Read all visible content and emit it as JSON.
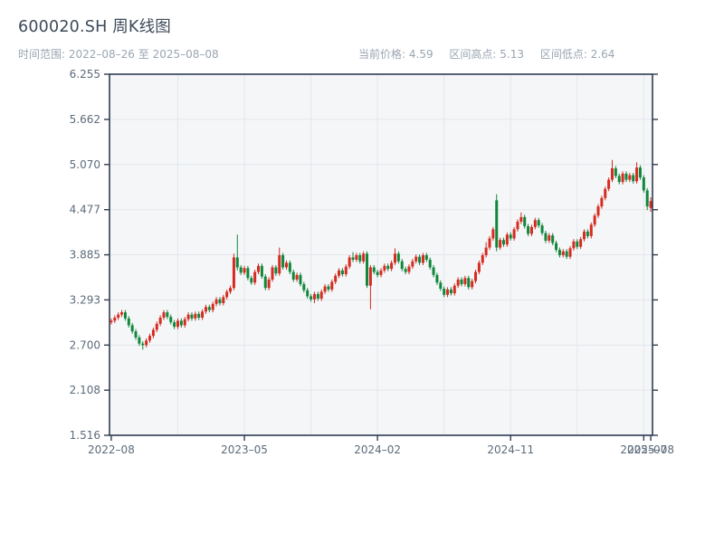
{
  "header": {
    "title": "600020.SH 周K线图",
    "subtitle": "时间范围: 2022–08–26 至 2025–08–08",
    "stats": [
      {
        "label": "当前价格:",
        "value": "4.59"
      },
      {
        "label": "区间高点:",
        "value": "5.13"
      },
      {
        "label": "区间低点:",
        "value": "2.64"
      }
    ]
  },
  "chart_data": {
    "type": "candlestick",
    "title": "600020.SH 周K线图",
    "frequency": "weekly",
    "date_start": "2022-08-26",
    "date_end": "2025-08-08",
    "current_price": 4.59,
    "range_high": 5.13,
    "range_low": 2.64,
    "ylim": [
      1.516,
      6.255
    ],
    "grid": true,
    "up_color": "#d62b20",
    "down_color": "#11873c",
    "spine_color": "#2f3d52",
    "tick_color": "#5c6b7a",
    "plot_bg": "#f4f6f8",
    "grid_color": "#e4e7ea",
    "y_ticks": [
      "6.255",
      "5.662",
      "5.070",
      "4.477",
      "3.885",
      "3.293",
      "2.700",
      "2.108",
      "1.516"
    ],
    "x_ticks": [
      {
        "week": 0,
        "label": "2022–08"
      },
      {
        "week": 38,
        "label": "2023–05"
      },
      {
        "week": 76,
        "label": "2024–02"
      },
      {
        "week": 114,
        "label": "2024–11"
      },
      {
        "week": 152,
        "label": "2025–07"
      },
      {
        "week": 154,
        "label": "2025–08"
      }
    ],
    "v_grid_weeks": [
      19,
      38,
      57,
      76,
      95,
      114,
      133,
      152
    ],
    "candles_ohlc": [
      [
        3.0,
        3.05,
        2.97,
        3.02
      ],
      [
        3.02,
        3.09,
        2.99,
        3.06
      ],
      [
        3.06,
        3.13,
        3.03,
        3.1
      ],
      [
        3.1,
        3.16,
        3.07,
        3.13
      ],
      [
        3.13,
        3.16,
        3.02,
        3.05
      ],
      [
        3.05,
        3.08,
        2.93,
        2.96
      ],
      [
        2.96,
        2.99,
        2.85,
        2.88
      ],
      [
        2.88,
        2.91,
        2.77,
        2.8
      ],
      [
        2.8,
        2.83,
        2.69,
        2.72
      ],
      [
        2.72,
        2.75,
        2.64,
        2.7
      ],
      [
        2.7,
        2.79,
        2.67,
        2.76
      ],
      [
        2.76,
        2.85,
        2.73,
        2.82
      ],
      [
        2.82,
        2.93,
        2.79,
        2.9
      ],
      [
        2.9,
        3.01,
        2.87,
        2.98
      ],
      [
        2.98,
        3.09,
        2.95,
        3.06
      ],
      [
        3.06,
        3.16,
        3.03,
        3.13
      ],
      [
        3.13,
        3.16,
        3.04,
        3.07
      ],
      [
        3.07,
        3.1,
        2.97,
        3.0
      ],
      [
        3.0,
        3.03,
        2.91,
        2.94
      ],
      [
        2.94,
        3.05,
        2.91,
        3.02
      ],
      [
        3.02,
        3.05,
        2.93,
        2.96
      ],
      [
        2.96,
        3.07,
        2.93,
        3.04
      ],
      [
        3.04,
        3.13,
        3.01,
        3.1
      ],
      [
        3.1,
        3.13,
        3.02,
        3.05
      ],
      [
        3.05,
        3.14,
        3.02,
        3.11
      ],
      [
        3.11,
        3.14,
        3.03,
        3.06
      ],
      [
        3.06,
        3.17,
        3.03,
        3.14
      ],
      [
        3.14,
        3.23,
        3.11,
        3.2
      ],
      [
        3.2,
        3.23,
        3.13,
        3.16
      ],
      [
        3.16,
        3.27,
        3.13,
        3.24
      ],
      [
        3.24,
        3.33,
        3.21,
        3.3
      ],
      [
        3.3,
        3.33,
        3.22,
        3.25
      ],
      [
        3.25,
        3.36,
        3.22,
        3.33
      ],
      [
        3.33,
        3.43,
        3.3,
        3.4
      ],
      [
        3.4,
        3.48,
        3.37,
        3.45
      ],
      [
        3.45,
        3.9,
        3.42,
        3.85
      ],
      [
        3.85,
        4.15,
        3.68,
        3.72
      ],
      [
        3.72,
        3.75,
        3.62,
        3.65
      ],
      [
        3.65,
        3.74,
        3.62,
        3.71
      ],
      [
        3.71,
        3.74,
        3.55,
        3.58
      ],
      [
        3.58,
        3.61,
        3.49,
        3.52
      ],
      [
        3.52,
        3.69,
        3.49,
        3.66
      ],
      [
        3.66,
        3.77,
        3.63,
        3.74
      ],
      [
        3.74,
        3.77,
        3.57,
        3.6
      ],
      [
        3.6,
        3.63,
        3.42,
        3.45
      ],
      [
        3.45,
        3.59,
        3.42,
        3.56
      ],
      [
        3.56,
        3.75,
        3.53,
        3.72
      ],
      [
        3.72,
        3.75,
        3.61,
        3.64
      ],
      [
        3.64,
        3.98,
        3.61,
        3.88
      ],
      [
        3.88,
        3.91,
        3.69,
        3.72
      ],
      [
        3.72,
        3.81,
        3.69,
        3.78
      ],
      [
        3.78,
        3.81,
        3.63,
        3.66
      ],
      [
        3.66,
        3.69,
        3.53,
        3.56
      ],
      [
        3.56,
        3.65,
        3.53,
        3.62
      ],
      [
        3.62,
        3.65,
        3.47,
        3.5
      ],
      [
        3.5,
        3.53,
        3.39,
        3.42
      ],
      [
        3.42,
        3.45,
        3.31,
        3.34
      ],
      [
        3.34,
        3.37,
        3.27,
        3.3
      ],
      [
        3.3,
        3.4,
        3.25,
        3.37
      ],
      [
        3.37,
        3.4,
        3.28,
        3.31
      ],
      [
        3.31,
        3.43,
        3.28,
        3.4
      ],
      [
        3.4,
        3.5,
        3.37,
        3.47
      ],
      [
        3.47,
        3.5,
        3.4,
        3.43
      ],
      [
        3.43,
        3.56,
        3.4,
        3.53
      ],
      [
        3.53,
        3.64,
        3.5,
        3.61
      ],
      [
        3.61,
        3.71,
        3.58,
        3.68
      ],
      [
        3.68,
        3.71,
        3.6,
        3.63
      ],
      [
        3.63,
        3.76,
        3.6,
        3.73
      ],
      [
        3.73,
        3.88,
        3.7,
        3.85
      ],
      [
        3.85,
        3.92,
        3.79,
        3.82
      ],
      [
        3.82,
        3.91,
        3.79,
        3.88
      ],
      [
        3.88,
        3.91,
        3.77,
        3.8
      ],
      [
        3.8,
        3.93,
        3.77,
        3.9
      ],
      [
        3.9,
        3.93,
        3.45,
        3.48
      ],
      [
        3.48,
        3.75,
        3.17,
        3.72
      ],
      [
        3.72,
        3.75,
        3.63,
        3.66
      ],
      [
        3.66,
        3.69,
        3.59,
        3.62
      ],
      [
        3.62,
        3.71,
        3.59,
        3.68
      ],
      [
        3.68,
        3.77,
        3.65,
        3.74
      ],
      [
        3.74,
        3.77,
        3.67,
        3.7
      ],
      [
        3.7,
        3.81,
        3.67,
        3.78
      ],
      [
        3.78,
        3.97,
        3.75,
        3.9
      ],
      [
        3.9,
        3.93,
        3.77,
        3.8
      ],
      [
        3.8,
        3.83,
        3.67,
        3.7
      ],
      [
        3.7,
        3.73,
        3.63,
        3.66
      ],
      [
        3.66,
        3.76,
        3.63,
        3.73
      ],
      [
        3.73,
        3.83,
        3.7,
        3.8
      ],
      [
        3.8,
        3.89,
        3.77,
        3.86
      ],
      [
        3.86,
        3.89,
        3.75,
        3.78
      ],
      [
        3.78,
        3.91,
        3.75,
        3.88
      ],
      [
        3.88,
        3.91,
        3.79,
        3.82
      ],
      [
        3.82,
        3.85,
        3.69,
        3.72
      ],
      [
        3.72,
        3.75,
        3.59,
        3.62
      ],
      [
        3.62,
        3.65,
        3.49,
        3.52
      ],
      [
        3.52,
        3.55,
        3.41,
        3.44
      ],
      [
        3.44,
        3.47,
        3.33,
        3.36
      ],
      [
        3.36,
        3.46,
        3.33,
        3.43
      ],
      [
        3.43,
        3.46,
        3.35,
        3.38
      ],
      [
        3.38,
        3.51,
        3.35,
        3.48
      ],
      [
        3.48,
        3.59,
        3.45,
        3.56
      ],
      [
        3.56,
        3.59,
        3.47,
        3.5
      ],
      [
        3.5,
        3.61,
        3.47,
        3.58
      ],
      [
        3.58,
        3.61,
        3.43,
        3.46
      ],
      [
        3.46,
        3.57,
        3.43,
        3.54
      ],
      [
        3.54,
        3.69,
        3.51,
        3.66
      ],
      [
        3.66,
        3.81,
        3.63,
        3.78
      ],
      [
        3.78,
        3.91,
        3.75,
        3.88
      ],
      [
        3.88,
        4.05,
        3.85,
        3.98
      ],
      [
        3.98,
        4.13,
        3.95,
        4.1
      ],
      [
        4.1,
        4.25,
        4.07,
        4.22
      ],
      [
        4.6,
        4.68,
        3.93,
        3.98
      ],
      [
        3.98,
        4.11,
        3.95,
        4.08
      ],
      [
        4.08,
        4.11,
        3.99,
        4.02
      ],
      [
        4.02,
        4.18,
        3.99,
        4.15
      ],
      [
        4.15,
        4.18,
        4.07,
        4.1
      ],
      [
        4.1,
        4.25,
        4.07,
        4.22
      ],
      [
        4.22,
        4.35,
        4.19,
        4.32
      ],
      [
        4.32,
        4.44,
        4.29,
        4.38
      ],
      [
        4.38,
        4.41,
        4.23,
        4.26
      ],
      [
        4.26,
        4.29,
        4.13,
        4.16
      ],
      [
        4.16,
        4.28,
        4.13,
        4.25
      ],
      [
        4.25,
        4.37,
        4.22,
        4.34
      ],
      [
        4.34,
        4.37,
        4.24,
        4.27
      ],
      [
        4.27,
        4.3,
        4.14,
        4.17
      ],
      [
        4.17,
        4.2,
        4.04,
        4.07
      ],
      [
        4.07,
        4.17,
        4.04,
        4.14
      ],
      [
        4.14,
        4.17,
        4.01,
        4.04
      ],
      [
        4.04,
        4.07,
        3.92,
        3.95
      ],
      [
        3.95,
        3.98,
        3.85,
        3.88
      ],
      [
        3.88,
        3.96,
        3.85,
        3.93
      ],
      [
        3.93,
        3.96,
        3.83,
        3.86
      ],
      [
        3.86,
        4.0,
        3.83,
        3.97
      ],
      [
        3.97,
        4.09,
        3.94,
        4.06
      ],
      [
        4.06,
        4.09,
        3.96,
        3.99
      ],
      [
        3.99,
        4.12,
        3.96,
        4.09
      ],
      [
        4.09,
        4.22,
        4.06,
        4.19
      ],
      [
        4.19,
        4.22,
        4.1,
        4.13
      ],
      [
        4.13,
        4.31,
        4.1,
        4.28
      ],
      [
        4.28,
        4.43,
        4.25,
        4.4
      ],
      [
        4.4,
        4.55,
        4.37,
        4.52
      ],
      [
        4.52,
        4.66,
        4.49,
        4.63
      ],
      [
        4.63,
        4.78,
        4.6,
        4.75
      ],
      [
        4.75,
        4.9,
        4.72,
        4.87
      ],
      [
        4.87,
        5.13,
        4.84,
        5.02
      ],
      [
        5.02,
        5.05,
        4.89,
        4.92
      ],
      [
        4.92,
        4.95,
        4.81,
        4.84
      ],
      [
        4.84,
        4.98,
        4.81,
        4.95
      ],
      [
        4.95,
        4.98,
        4.84,
        4.87
      ],
      [
        4.87,
        4.96,
        4.84,
        4.93
      ],
      [
        4.93,
        4.96,
        4.82,
        4.85
      ],
      [
        4.85,
        5.1,
        4.82,
        5.03
      ],
      [
        5.03,
        5.06,
        4.87,
        4.9
      ],
      [
        4.9,
        4.93,
        4.7,
        4.73
      ],
      [
        4.73,
        4.76,
        4.47,
        4.52
      ],
      [
        4.5,
        4.64,
        4.45,
        4.59
      ]
    ]
  }
}
